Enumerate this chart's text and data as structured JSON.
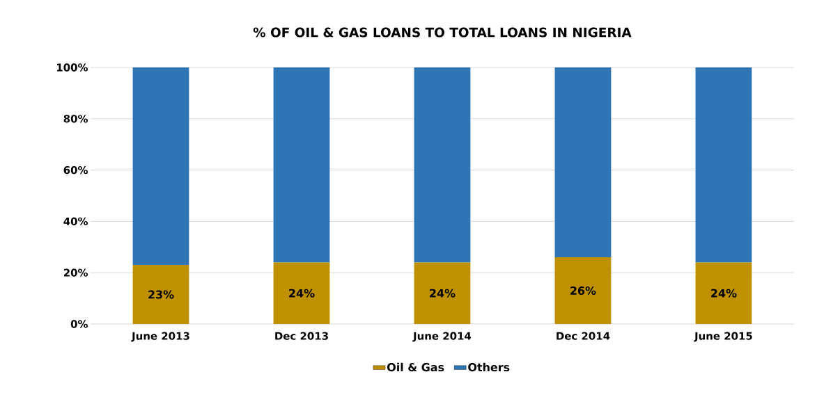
{
  "chart_data": {
    "type": "bar",
    "stacked": true,
    "title": "% OF OIL & GAS LOANS TO TOTAL LOANS IN NIGERIA",
    "categories": [
      "June 2013",
      "Dec 2013",
      "June 2014",
      "Dec 2014",
      "June 2015"
    ],
    "series": [
      {
        "name": "Oil & Gas",
        "color": "#bf9000",
        "values": [
          23,
          24,
          24,
          26,
          24
        ],
        "value_labels": [
          "23%",
          "24%",
          "24%",
          "26%",
          "24%"
        ]
      },
      {
        "name": "Others",
        "color": "#2e75b6",
        "values": [
          77,
          76,
          76,
          74,
          76
        ]
      }
    ],
    "ylim": [
      0,
      100
    ],
    "yticks": [
      {
        "value": 0,
        "label": "0%"
      },
      {
        "value": 20,
        "label": "20%"
      },
      {
        "value": 40,
        "label": "40%"
      },
      {
        "value": 60,
        "label": "60%"
      },
      {
        "value": 80,
        "label": "80%"
      },
      {
        "value": 100,
        "label": "100%"
      }
    ],
    "grid": "y",
    "legend": "bottom"
  }
}
